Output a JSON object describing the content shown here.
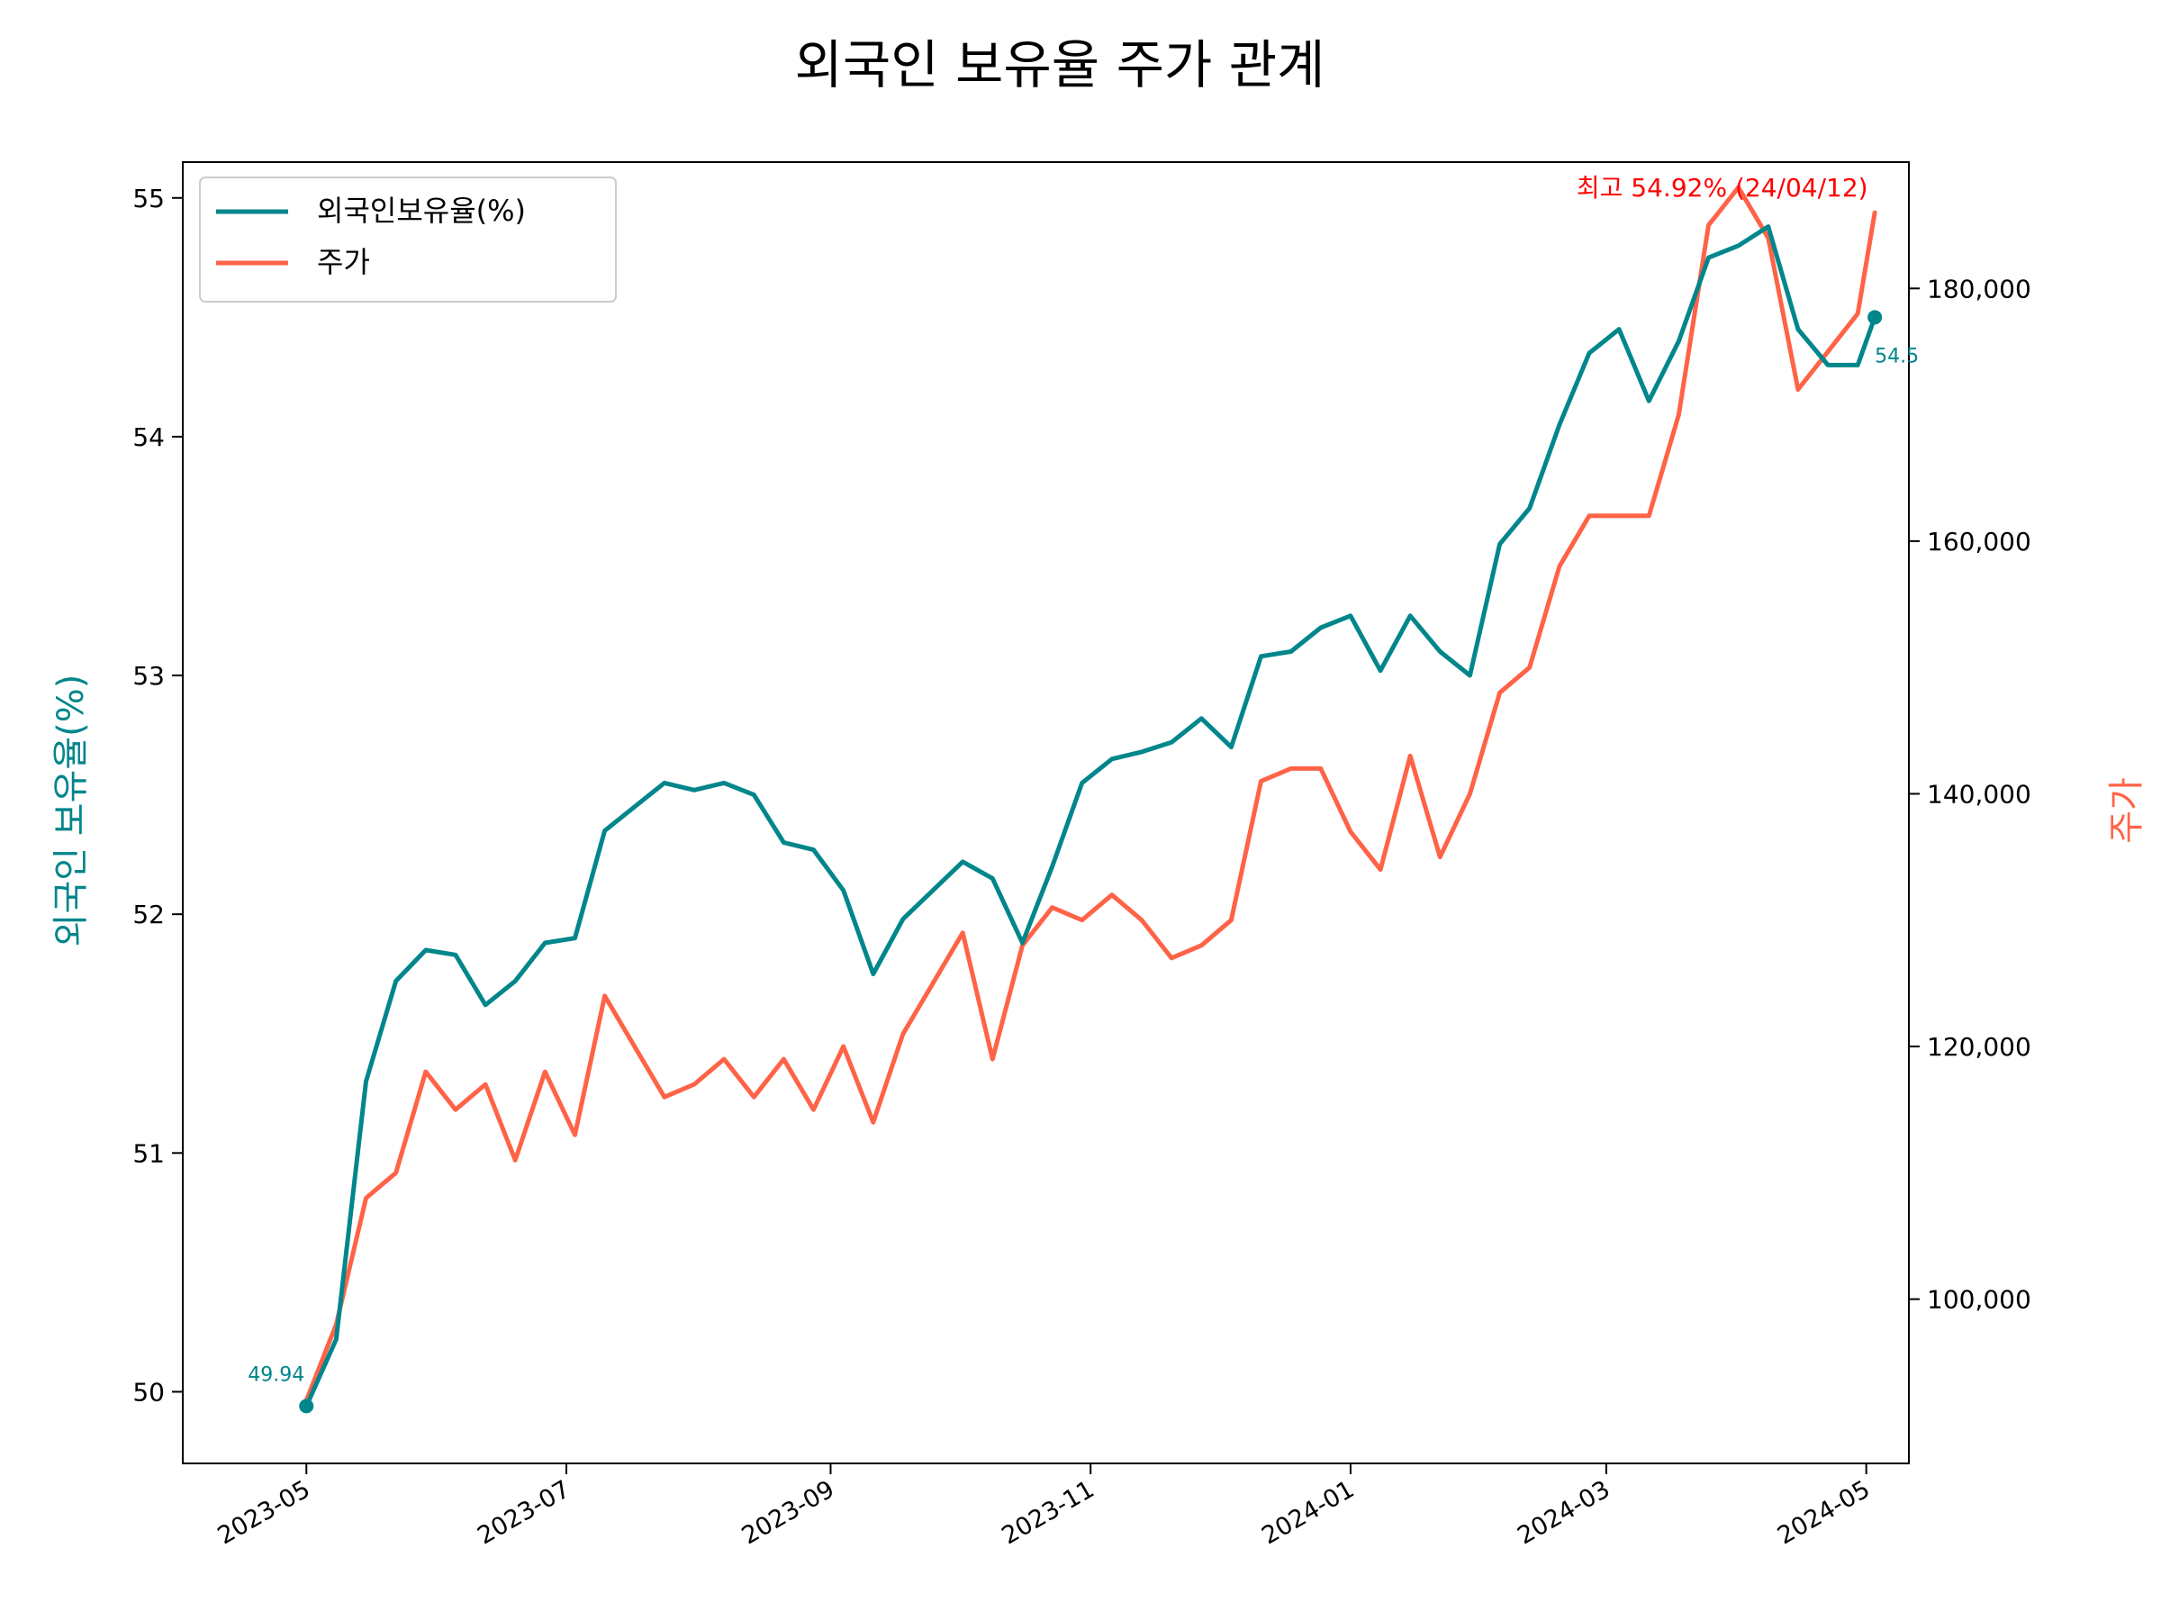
{
  "chart_data": {
    "type": "line",
    "title": "외국인 보유율 주가 관계",
    "xlabel": "",
    "x_ticks": [
      "2023-05-01",
      "2023-07-01",
      "2023-09-01",
      "2023-11-01",
      "2024-01-01",
      "2024-03-01",
      "2024-05-01"
    ],
    "x_tick_labels": [
      "2023-05",
      "2023-07",
      "2023-09",
      "2023-11",
      "2024-01",
      "2024-03",
      "2024-05"
    ],
    "y_left": {
      "label": "외국인 보유율(%)",
      "range": [
        49.7,
        55.15
      ],
      "ticks": [
        50,
        51,
        52,
        53,
        54,
        55
      ],
      "tick_labels": [
        "50",
        "51",
        "52",
        "53",
        "54",
        "55"
      ]
    },
    "y_right": {
      "label": "주가",
      "range": [
        87000,
        190000
      ],
      "ticks": [
        100000,
        120000,
        140000,
        160000,
        180000
      ],
      "tick_labels": [
        "100,000",
        "120,000",
        "140,000",
        "160,000",
        "180,000"
      ]
    },
    "legend": {
      "placement": "top-left",
      "entries": [
        "외국인보유율(%)",
        "주가"
      ]
    },
    "colors": {
      "ownership": "#00868b",
      "price": "#ff6347",
      "peak_annotation": "#ff0000"
    },
    "series": [
      {
        "name": "외국인보유율(%)",
        "axis": "left",
        "x": [
          "2023-05-01",
          "2023-05-08",
          "2023-05-15",
          "2023-05-22",
          "2023-05-29",
          "2023-06-05",
          "2023-06-12",
          "2023-06-19",
          "2023-06-26",
          "2023-07-03",
          "2023-07-10",
          "2023-07-17",
          "2023-07-24",
          "2023-07-31",
          "2023-08-07",
          "2023-08-14",
          "2023-08-21",
          "2023-08-28",
          "2023-09-04",
          "2023-09-11",
          "2023-09-18",
          "2023-09-25",
          "2023-10-02",
          "2023-10-09",
          "2023-10-16",
          "2023-10-23",
          "2023-10-30",
          "2023-11-06",
          "2023-11-13",
          "2023-11-20",
          "2023-11-27",
          "2023-12-04",
          "2023-12-11",
          "2023-12-18",
          "2023-12-25",
          "2024-01-01",
          "2024-01-08",
          "2024-01-15",
          "2024-01-22",
          "2024-01-29",
          "2024-02-05",
          "2024-02-12",
          "2024-02-19",
          "2024-02-26",
          "2024-03-04",
          "2024-03-11",
          "2024-03-18",
          "2024-03-25",
          "2024-04-01",
          "2024-04-08",
          "2024-04-15",
          "2024-04-22",
          "2024-04-29",
          "2024-05-03"
        ],
        "values": [
          49.94,
          50.22,
          51.3,
          51.72,
          51.85,
          51.83,
          51.62,
          51.72,
          51.88,
          51.9,
          52.35,
          52.45,
          52.55,
          52.52,
          52.55,
          52.5,
          52.3,
          52.27,
          52.1,
          51.75,
          51.98,
          52.1,
          52.22,
          52.15,
          51.88,
          52.2,
          52.55,
          52.65,
          52.68,
          52.72,
          52.82,
          52.7,
          53.08,
          53.1,
          53.2,
          53.25,
          53.02,
          53.25,
          53.1,
          53.0,
          53.55,
          53.7,
          54.05,
          54.35,
          54.45,
          54.15,
          54.4,
          54.75,
          54.8,
          54.88,
          54.45,
          54.3,
          54.3,
          54.5
        ]
      },
      {
        "name": "주가",
        "axis": "right",
        "x": [
          "2023-05-01",
          "2023-05-08",
          "2023-05-15",
          "2023-05-22",
          "2023-05-29",
          "2023-06-05",
          "2023-06-12",
          "2023-06-19",
          "2023-06-26",
          "2023-07-03",
          "2023-07-10",
          "2023-07-17",
          "2023-07-24",
          "2023-07-31",
          "2023-08-07",
          "2023-08-14",
          "2023-08-21",
          "2023-08-28",
          "2023-09-04",
          "2023-09-11",
          "2023-09-18",
          "2023-09-25",
          "2023-10-02",
          "2023-10-09",
          "2023-10-16",
          "2023-10-23",
          "2023-10-30",
          "2023-11-06",
          "2023-11-13",
          "2023-11-20",
          "2023-11-27",
          "2023-12-04",
          "2023-12-11",
          "2023-12-18",
          "2023-12-25",
          "2024-01-01",
          "2024-01-08",
          "2024-01-15",
          "2024-01-22",
          "2024-01-29",
          "2024-02-05",
          "2024-02-12",
          "2024-02-19",
          "2024-02-26",
          "2024-03-04",
          "2024-03-11",
          "2024-03-18",
          "2024-03-25",
          "2024-04-01",
          "2024-04-08",
          "2024-04-15",
          "2024-04-22",
          "2024-04-29",
          "2024-05-03"
        ],
        "values": [
          92000,
          98000,
          108000,
          110000,
          118000,
          115000,
          117000,
          111000,
          118000,
          113000,
          124000,
          120000,
          116000,
          117000,
          119000,
          116000,
          119000,
          115000,
          120000,
          114000,
          121000,
          125000,
          129000,
          119000,
          128000,
          131000,
          130000,
          132000,
          130000,
          127000,
          128000,
          130000,
          141000,
          142000,
          142000,
          137000,
          134000,
          143000,
          135000,
          140000,
          148000,
          150000,
          158000,
          162000,
          162000,
          162000,
          170000,
          185000,
          188000,
          184000,
          172000,
          175000,
          178000,
          186000
        ]
      }
    ],
    "annotations": {
      "start_label": "49.94",
      "end_label": "54.5",
      "peak_label": "최고 54.92% (24/04/12)",
      "peak": {
        "x": "2024-04-12",
        "y": 54.92
      }
    }
  }
}
